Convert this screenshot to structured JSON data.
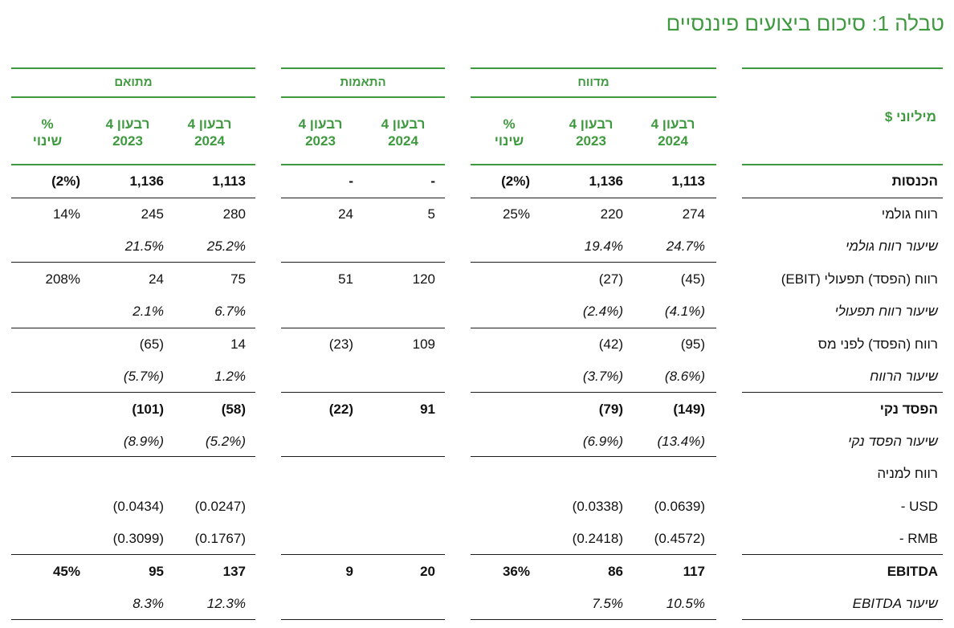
{
  "title": "טבלה 1: סיכום ביצועים פיננסיים",
  "unit_label": "מיליוני $",
  "groups": {
    "reported": "מדווח",
    "adjustments": "התאמות",
    "adjusted": "מתואם"
  },
  "col_headers": {
    "q4_2024": "רבעון 4\n2024",
    "q4_2023": "רבעון 4\n2023",
    "pct_change": "%\nשינוי"
  },
  "rows": [
    {
      "label": "הכנסות",
      "style": "bold",
      "rep24": "1,113",
      "rep23": "1,136",
      "repchg": "(2%)",
      "adj24": "-",
      "adj23": "-",
      "m24": "1,113",
      "m23": "1,136",
      "mchg": "(2%)"
    },
    {
      "label": "רווח גולמי",
      "style": "normal",
      "rep24": "274",
      "rep23": "220",
      "repchg": "25%",
      "adj24": "5",
      "adj23": "24",
      "m24": "280",
      "m23": "245",
      "mchg": "14%"
    },
    {
      "label": "שיעור רווח גולמי",
      "style": "italic",
      "rep24": "24.7%",
      "rep23": "19.4%",
      "repchg": "",
      "adj24": "",
      "adj23": "",
      "m24": "25.2%",
      "m23": "21.5%",
      "mchg": ""
    },
    {
      "label": "רווח (הפסד) תפעולי (EBIT)",
      "style": "normal",
      "rep24": "(45)",
      "rep23": "(27)",
      "repchg": "",
      "adj24": "120",
      "adj23": "51",
      "m24": "75",
      "m23": "24",
      "mchg": "208%"
    },
    {
      "label": "שיעור רווח תפעולי",
      "style": "italic",
      "rep24": "(4.1%)",
      "rep23": "(2.4%)",
      "repchg": "",
      "adj24": "",
      "adj23": "",
      "m24": "6.7%",
      "m23": "2.1%",
      "mchg": ""
    },
    {
      "label": "רווח (הפסד) לפני מס",
      "style": "normal",
      "rep24": "(95)",
      "rep23": "(42)",
      "repchg": "",
      "adj24": "109",
      "adj23": "(23)",
      "m24": "14",
      "m23": "(65)",
      "mchg": ""
    },
    {
      "label": "שיעור הרווח",
      "style": "italic",
      "rep24": "(8.6%)",
      "rep23": "(3.7%)",
      "repchg": "",
      "adj24": "",
      "adj23": "",
      "m24": "1.2%",
      "m23": "(5.7%)",
      "mchg": ""
    },
    {
      "label": "הפסד נקי",
      "style": "bold",
      "rep24": "(149)",
      "rep23": "(79)",
      "repchg": "",
      "adj24": "91",
      "adj23": "(22)",
      "m24": "(58)",
      "m23": "(101)",
      "mchg": ""
    },
    {
      "label": "שיעור הפסד נקי",
      "style": "italic",
      "rep24": "(13.4%)",
      "rep23": "(6.9%)",
      "repchg": "",
      "adj24": "",
      "adj23": "",
      "m24": "(5.2%)",
      "m23": "(8.9%)",
      "mchg": ""
    },
    {
      "label": "רווח למניה",
      "style": "normal",
      "rep24": "",
      "rep23": "",
      "repchg": "",
      "adj24": "",
      "adj23": "",
      "m24": "",
      "m23": "",
      "mchg": ""
    },
    {
      "label": "USD -",
      "style": "normal",
      "rep24": "(0.0639)",
      "rep23": "(0.0338)",
      "repchg": "",
      "adj24": "",
      "adj23": "",
      "m24": "(0.0247)",
      "m23": "(0.0434)",
      "mchg": ""
    },
    {
      "label": "RMB -",
      "style": "normal",
      "rep24": "(0.4572)",
      "rep23": "(0.2418)",
      "repchg": "",
      "adj24": "",
      "adj23": "",
      "m24": "(0.1767)",
      "m23": "(0.3099)",
      "mchg": ""
    },
    {
      "label": "EBITDA",
      "style": "bold",
      "rep24": "117",
      "rep23": "86",
      "repchg": "36%",
      "adj24": "20",
      "adj23": "9",
      "m24": "137",
      "m23": "95",
      "mchg": "45%"
    },
    {
      "label": "שיעור EBITDA",
      "style": "italic",
      "rep24": "10.5%",
      "rep23": "7.5%",
      "repchg": "",
      "adj24": "",
      "adj23": "",
      "m24": "12.3%",
      "m23": "8.3%",
      "mchg": ""
    }
  ]
}
